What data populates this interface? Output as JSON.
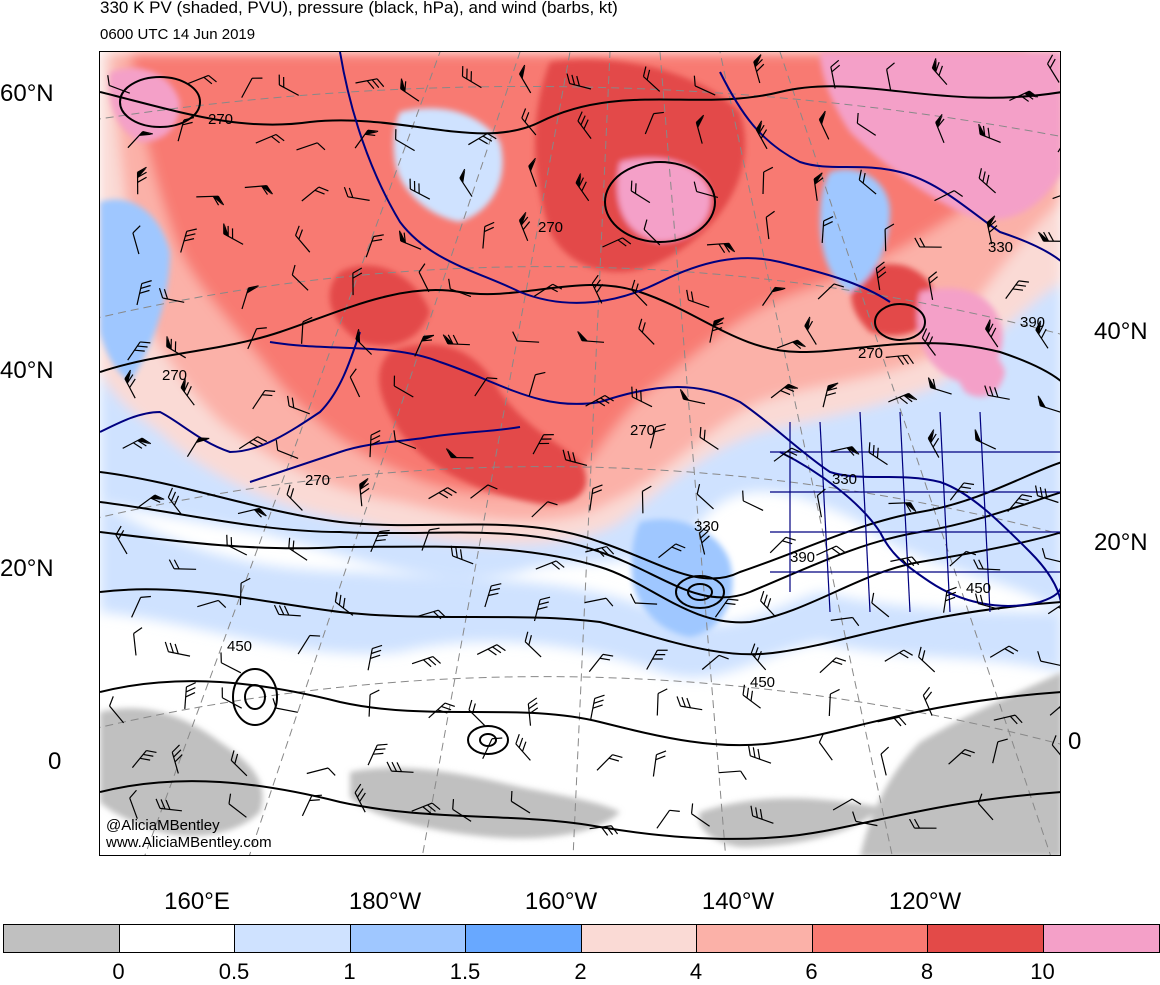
{
  "header": {
    "title": "330 K PV (shaded, PVU), pressure (black, hPa), and wind (barbs, kt)",
    "valid_time": "0600 UTC 14 Jun 2019"
  },
  "lat_labels_left": [
    "60°N",
    "40°N",
    "20°N",
    "0"
  ],
  "lat_labels_right": [
    "40°N",
    "20°N",
    "0"
  ],
  "lon_labels": [
    "160°E",
    "180°W",
    "160°W",
    "140°W",
    "120°W"
  ],
  "contour_labels": {
    "p270": "270",
    "p330": "330",
    "p390": "390",
    "p450": "450"
  },
  "credits": {
    "handle": "@AliciaMBentley",
    "site": "www.AliciaMBentley.com"
  },
  "colorbar": {
    "colors": [
      "#c0c0c0",
      "#ffffff",
      "#cfe2ff",
      "#9fc7ff",
      "#68a8ff",
      "#fadad5",
      "#fbb1a8",
      "#f87a72",
      "#e34a48",
      "#f4a0c8"
    ],
    "tick_labels": [
      "0",
      "0.5",
      "1",
      "1.5",
      "2",
      "4",
      "6",
      "8",
      "10"
    ]
  },
  "map_colors": {
    "coast": "#000080",
    "contour": "#000000",
    "grid": "#888888"
  }
}
